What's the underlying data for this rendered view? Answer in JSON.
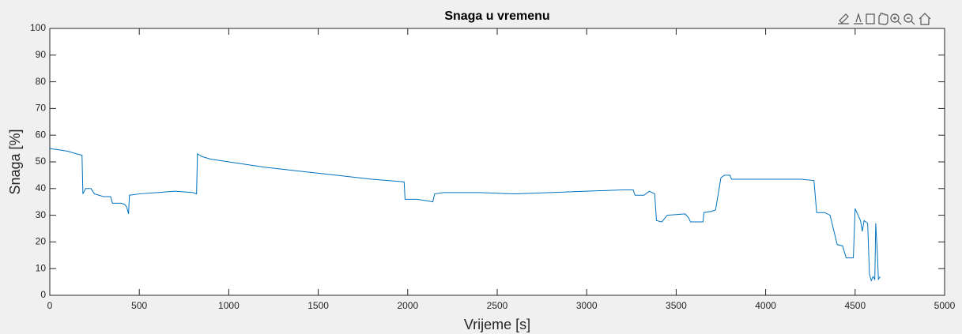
{
  "chart_data": {
    "type": "line",
    "title": "Snaga u vremenu",
    "xlabel": "Vrijeme [s]",
    "ylabel": "Snaga [%]",
    "x": [
      0,
      50,
      100,
      150,
      180,
      185,
      200,
      230,
      250,
      300,
      340,
      350,
      400,
      420,
      430,
      440,
      445,
      500,
      600,
      700,
      800,
      820,
      825,
      850,
      900,
      1000,
      1200,
      1400,
      1600,
      1800,
      1980,
      1985,
      2050,
      2100,
      2140,
      2150,
      2200,
      2400,
      2600,
      2800,
      3000,
      3200,
      3260,
      3270,
      3320,
      3350,
      3380,
      3390,
      3420,
      3450,
      3550,
      3570,
      3580,
      3650,
      3655,
      3700,
      3720,
      3750,
      3770,
      3800,
      3810,
      4000,
      4200,
      4270,
      4285,
      4330,
      4360,
      4400,
      4430,
      4450,
      4490,
      4500,
      4530,
      4540,
      4550,
      4570,
      4580,
      4590,
      4600,
      4610,
      4615,
      4625,
      4630,
      4640
    ],
    "values": [
      55,
      54.5,
      54,
      53,
      52.5,
      38,
      40,
      40,
      38,
      37,
      37,
      34.5,
      34.5,
      34,
      33,
      30.5,
      37.5,
      38,
      38.5,
      39,
      38.5,
      38,
      53,
      52,
      51,
      50,
      48,
      46.5,
      45,
      43.5,
      42.5,
      36,
      36,
      35.5,
      35,
      38,
      38.5,
      38.5,
      38,
      38.5,
      39,
      39.5,
      39.5,
      37.5,
      37.5,
      39,
      38,
      28,
      27.5,
      30,
      30.5,
      29,
      27.5,
      27.5,
      31,
      31.5,
      32,
      44,
      45,
      45,
      43.5,
      43.5,
      43.5,
      43,
      31,
      31,
      30,
      19,
      18.5,
      14,
      14,
      32.5,
      28,
      24,
      28,
      27,
      8,
      5.5,
      7,
      6,
      27,
      15,
      6,
      7
    ],
    "color": "#0072bd",
    "xlim": [
      0,
      5000
    ],
    "xticks": [
      0,
      500,
      1000,
      1500,
      2000,
      2500,
      3000,
      3500,
      4000,
      4500,
      5000
    ],
    "ylim": [
      0,
      100
    ],
    "yticks": [
      0,
      10,
      20,
      30,
      40,
      50,
      60,
      70,
      80,
      90,
      100
    ],
    "grid": false
  }
}
